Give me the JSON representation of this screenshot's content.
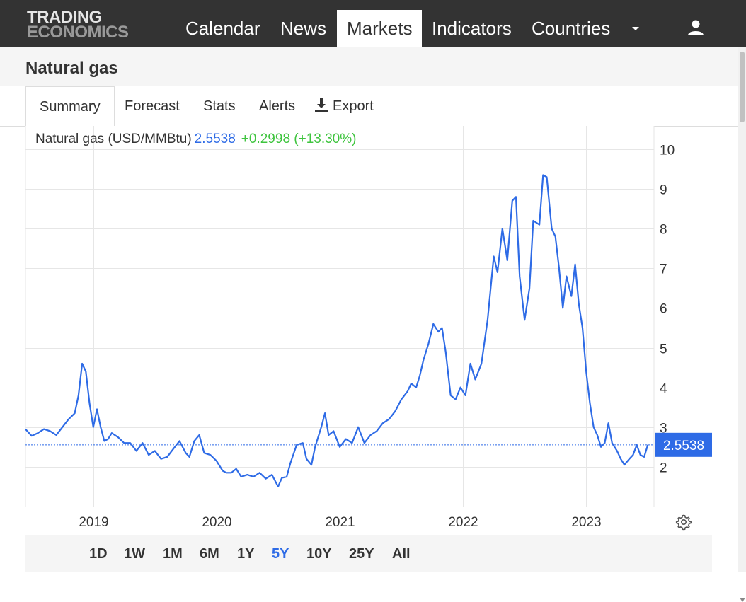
{
  "header": {
    "logo_line1": "TRADING",
    "logo_line2": "ECONOMICS",
    "nav": [
      "Calendar",
      "News",
      "Markets",
      "Indicators",
      "Countries"
    ],
    "active_nav": "Markets"
  },
  "page": {
    "title": "Natural gas"
  },
  "tabs": [
    "Summary",
    "Forecast",
    "Stats",
    "Alerts",
    "Export"
  ],
  "active_tab": "Summary",
  "legend": {
    "name": "Natural gas (USD/MMBtu)",
    "value": "2.5538",
    "change": "+0.2998 (+13.30%)"
  },
  "ranges": [
    "1D",
    "1W",
    "1M",
    "6M",
    "1Y",
    "5Y",
    "10Y",
    "25Y",
    "All"
  ],
  "active_range": "5Y",
  "colors": {
    "line": "#2e6be6",
    "change": "#3ec43e",
    "topbar": "#333333"
  },
  "chart_data": {
    "type": "line",
    "title": "",
    "xlabel": "",
    "ylabel": "",
    "x_ticks": [
      "2019",
      "2020",
      "2021",
      "2022",
      "2023"
    ],
    "y_ticks": [
      "2",
      "3",
      "4",
      "5",
      "6",
      "7",
      "8",
      "9",
      "10"
    ],
    "ylim": [
      1,
      10
    ],
    "xlim": [
      2018.45,
      2023.55
    ],
    "current_value": 2.5538,
    "current_value_label": "2.5538",
    "grid": true,
    "series": [
      {
        "values": [
          [
            2018.45,
            2.95
          ],
          [
            2018.5,
            2.78
          ],
          [
            2018.55,
            2.85
          ],
          [
            2018.6,
            2.95
          ],
          [
            2018.65,
            2.9
          ],
          [
            2018.7,
            2.8
          ],
          [
            2018.75,
            3.0
          ],
          [
            2018.8,
            3.2
          ],
          [
            2018.85,
            3.35
          ],
          [
            2018.88,
            3.8
          ],
          [
            2018.91,
            4.6
          ],
          [
            2018.94,
            4.4
          ],
          [
            2018.97,
            3.6
          ],
          [
            2019.0,
            3.0
          ],
          [
            2019.03,
            3.45
          ],
          [
            2019.06,
            3.0
          ],
          [
            2019.09,
            2.65
          ],
          [
            2019.12,
            2.7
          ],
          [
            2019.15,
            2.85
          ],
          [
            2019.2,
            2.75
          ],
          [
            2019.25,
            2.6
          ],
          [
            2019.3,
            2.6
          ],
          [
            2019.35,
            2.4
          ],
          [
            2019.4,
            2.6
          ],
          [
            2019.45,
            2.3
          ],
          [
            2019.5,
            2.4
          ],
          [
            2019.55,
            2.2
          ],
          [
            2019.6,
            2.25
          ],
          [
            2019.65,
            2.45
          ],
          [
            2019.7,
            2.65
          ],
          [
            2019.75,
            2.35
          ],
          [
            2019.78,
            2.25
          ],
          [
            2019.82,
            2.65
          ],
          [
            2019.86,
            2.8
          ],
          [
            2019.9,
            2.35
          ],
          [
            2019.95,
            2.3
          ],
          [
            2020.0,
            2.15
          ],
          [
            2020.05,
            1.9
          ],
          [
            2020.08,
            1.85
          ],
          [
            2020.12,
            1.85
          ],
          [
            2020.16,
            1.95
          ],
          [
            2020.2,
            1.75
          ],
          [
            2020.25,
            1.8
          ],
          [
            2020.3,
            1.75
          ],
          [
            2020.35,
            1.85
          ],
          [
            2020.4,
            1.7
          ],
          [
            2020.45,
            1.8
          ],
          [
            2020.5,
            1.5
          ],
          [
            2020.53,
            1.72
          ],
          [
            2020.57,
            1.75
          ],
          [
            2020.6,
            2.1
          ],
          [
            2020.65,
            2.55
          ],
          [
            2020.7,
            2.6
          ],
          [
            2020.73,
            2.2
          ],
          [
            2020.77,
            2.05
          ],
          [
            2020.8,
            2.5
          ],
          [
            2020.85,
            3.0
          ],
          [
            2020.88,
            3.35
          ],
          [
            2020.91,
            2.8
          ],
          [
            2020.95,
            2.9
          ],
          [
            2021.0,
            2.5
          ],
          [
            2021.05,
            2.7
          ],
          [
            2021.1,
            2.6
          ],
          [
            2021.15,
            3.0
          ],
          [
            2021.2,
            2.6
          ],
          [
            2021.25,
            2.8
          ],
          [
            2021.3,
            2.9
          ],
          [
            2021.35,
            3.1
          ],
          [
            2021.4,
            3.2
          ],
          [
            2021.45,
            3.4
          ],
          [
            2021.5,
            3.7
          ],
          [
            2021.55,
            3.9
          ],
          [
            2021.58,
            4.1
          ],
          [
            2021.62,
            4.0
          ],
          [
            2021.65,
            4.3
          ],
          [
            2021.68,
            4.7
          ],
          [
            2021.72,
            5.1
          ],
          [
            2021.76,
            5.6
          ],
          [
            2021.8,
            5.4
          ],
          [
            2021.83,
            5.5
          ],
          [
            2021.86,
            4.9
          ],
          [
            2021.9,
            3.8
          ],
          [
            2021.94,
            3.7
          ],
          [
            2021.98,
            4.0
          ],
          [
            2022.02,
            3.8
          ],
          [
            2022.06,
            4.6
          ],
          [
            2022.1,
            4.2
          ],
          [
            2022.15,
            4.6
          ],
          [
            2022.2,
            5.7
          ],
          [
            2022.25,
            7.3
          ],
          [
            2022.28,
            6.9
          ],
          [
            2022.32,
            8.0
          ],
          [
            2022.36,
            7.2
          ],
          [
            2022.4,
            8.7
          ],
          [
            2022.43,
            8.8
          ],
          [
            2022.46,
            6.8
          ],
          [
            2022.5,
            5.7
          ],
          [
            2022.54,
            6.5
          ],
          [
            2022.57,
            8.2
          ],
          [
            2022.62,
            8.1
          ],
          [
            2022.65,
            9.35
          ],
          [
            2022.68,
            9.3
          ],
          [
            2022.72,
            8.0
          ],
          [
            2022.75,
            7.8
          ],
          [
            2022.78,
            7.0
          ],
          [
            2022.81,
            6.0
          ],
          [
            2022.84,
            6.8
          ],
          [
            2022.88,
            6.3
          ],
          [
            2022.91,
            7.1
          ],
          [
            2022.94,
            6.1
          ],
          [
            2022.97,
            5.5
          ],
          [
            2023.0,
            4.4
          ],
          [
            2023.03,
            3.6
          ],
          [
            2023.06,
            3.0
          ],
          [
            2023.09,
            2.8
          ],
          [
            2023.12,
            2.5
          ],
          [
            2023.15,
            2.6
          ],
          [
            2023.18,
            3.1
          ],
          [
            2023.21,
            2.6
          ],
          [
            2023.25,
            2.4
          ],
          [
            2023.28,
            2.2
          ],
          [
            2023.31,
            2.05
          ],
          [
            2023.35,
            2.2
          ],
          [
            2023.38,
            2.3
          ],
          [
            2023.41,
            2.55
          ],
          [
            2023.44,
            2.3
          ],
          [
            2023.47,
            2.25
          ],
          [
            2023.5,
            2.5538
          ]
        ]
      }
    ]
  }
}
